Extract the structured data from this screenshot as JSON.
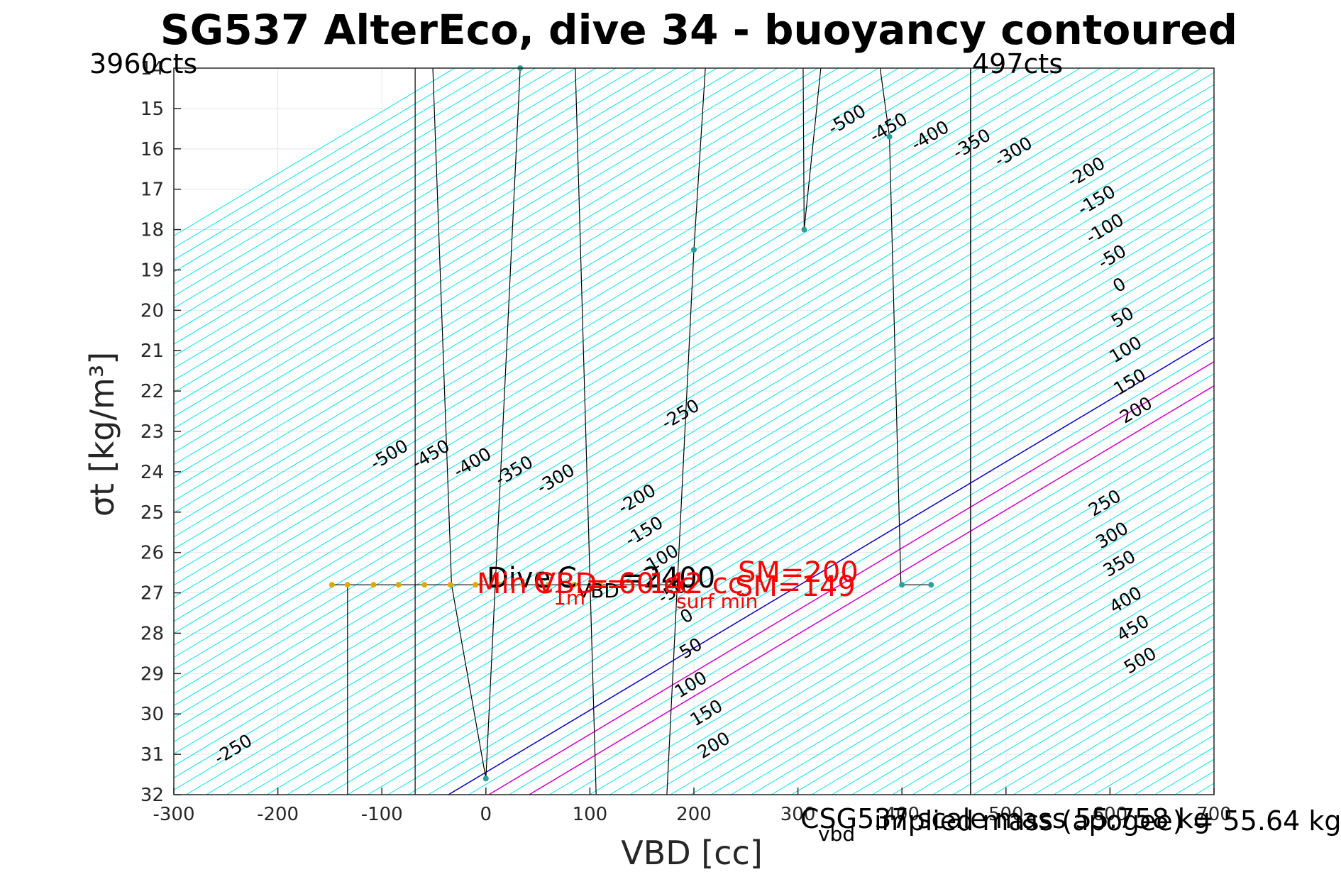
{
  "title": "SG537 AlterEco, dive 34 - buoyancy contoured",
  "corner_labels": {
    "left": "3960cts",
    "right": "497cts"
  },
  "bottom_note": {
    "prefix": "C",
    "sub": "vbd",
    "text": "SG537 scale mass 55.758 kg",
    "overlay": "implied mass (apogee) = 55.64 kg"
  },
  "annotations": {
    "min_vbd_label": "Min VBD = -142 cc",
    "vbd_c_label": "C",
    "vbd_c_sub": "VBD",
    "vbd_c_value": "=2400",
    "c_1m_label": "C",
    "c_1m_sub": "1m",
    "c_1m_value": "= 60 cc",
    "sm_label": "SM",
    "sm_sub": "surf min",
    "sm_value": "=149",
    "dive_label": "Dive",
    "sm_value_top": "=200"
  },
  "colors": {
    "contour": "#00e5ee",
    "zero": "#0000cc",
    "pos": "#cc00cc",
    "trace": "#000000",
    "point": "#2aa198",
    "point_alt": "#e0a800"
  },
  "chart_data": {
    "type": "line",
    "title": "SG537 AlterEco, dive 34 - buoyancy contoured",
    "xlabel": "VBD [cc]",
    "ylabel": "σt [kg/m³]",
    "xlim": [
      -300,
      700
    ],
    "ylim": [
      32,
      14
    ],
    "x_ticks": [
      -300,
      -200,
      -100,
      0,
      100,
      200,
      300,
      400,
      500,
      600,
      700
    ],
    "y_ticks": [
      14,
      15,
      16,
      17,
      18,
      19,
      20,
      21,
      22,
      23,
      24,
      25,
      26,
      27,
      28,
      29,
      30,
      31,
      32
    ],
    "x_tick_labels": [
      "-300",
      "-200",
      "-100",
      "0",
      "100",
      "200",
      "300",
      "400",
      "500",
      "600",
      "700"
    ],
    "y_tick_labels": [
      "14",
      "15",
      "16",
      "17",
      "18",
      "19",
      "20",
      "21",
      "22",
      "23",
      "24",
      "25",
      "26",
      "27",
      "28",
      "29",
      "30",
      "31",
      "32"
    ],
    "grid": true,
    "contours": {
      "slope_cc_per_sigma": 65,
      "zero_anchor": {
        "x": -36,
        "y": 32
      },
      "levels": [
        -500,
        -450,
        -400,
        -350,
        -300,
        -250,
        -200,
        -150,
        -100,
        -50,
        0,
        50,
        100,
        150,
        200,
        250,
        300,
        350,
        400,
        450,
        500
      ],
      "level_spacing_cc": 19.4,
      "labels_lower": [
        {
          "text": "-500",
          "x": -90,
          "y": 23.7
        },
        {
          "text": "-450",
          "x": -50,
          "y": 23.7
        },
        {
          "text": "-400",
          "x": -10,
          "y": 23.9
        },
        {
          "text": "-350",
          "x": 30,
          "y": 24.1
        },
        {
          "text": "-300",
          "x": 70,
          "y": 24.3
        },
        {
          "text": "-250",
          "x": 190,
          "y": 22.7
        },
        {
          "text": "-250",
          "x": -240,
          "y": 31.0
        },
        {
          "text": "-200",
          "x": 148,
          "y": 24.8
        },
        {
          "text": "-150",
          "x": 155,
          "y": 25.6
        },
        {
          "text": "-100",
          "x": 170,
          "y": 26.3
        },
        {
          "text": "-50",
          "x": 182,
          "y": 27.1
        },
        {
          "text": "0",
          "x": 196,
          "y": 27.7
        },
        {
          "text": "50",
          "x": 200,
          "y": 28.5
        },
        {
          "text": "100",
          "x": 200,
          "y": 29.4
        },
        {
          "text": "150",
          "x": 215,
          "y": 30.1
        },
        {
          "text": "200",
          "x": 222,
          "y": 30.9
        }
      ],
      "labels_upper": [
        {
          "text": "-500",
          "x": 350,
          "y": 15.4
        },
        {
          "text": "-450",
          "x": 390,
          "y": 15.6
        },
        {
          "text": "-400",
          "x": 430,
          "y": 15.8
        },
        {
          "text": "-350",
          "x": 470,
          "y": 16.0
        },
        {
          "text": "-300",
          "x": 510,
          "y": 16.2
        },
        {
          "text": "-200",
          "x": 580,
          "y": 16.7
        },
        {
          "text": "-150",
          "x": 590,
          "y": 17.4
        },
        {
          "text": "-100",
          "x": 598,
          "y": 18.1
        },
        {
          "text": "-50",
          "x": 605,
          "y": 18.8
        },
        {
          "text": "0",
          "x": 612,
          "y": 19.5
        },
        {
          "text": "50",
          "x": 615,
          "y": 20.3
        },
        {
          "text": "100",
          "x": 618,
          "y": 21.1
        },
        {
          "text": "150",
          "x": 622,
          "y": 21.9
        },
        {
          "text": "200",
          "x": 628,
          "y": 22.6
        },
        {
          "text": "250",
          "x": 598,
          "y": 24.9
        },
        {
          "text": "300",
          "x": 605,
          "y": 25.7
        },
        {
          "text": "350",
          "x": 612,
          "y": 26.4
        },
        {
          "text": "400",
          "x": 618,
          "y": 27.3
        },
        {
          "text": "450",
          "x": 625,
          "y": 28.0
        },
        {
          "text": "500",
          "x": 632,
          "y": 28.8
        }
      ]
    },
    "vertical_lines": [
      {
        "x": 466,
        "y0": 14,
        "y1": 32,
        "color": "black"
      }
    ],
    "traces": [
      {
        "name": "",
        "points": [
          [
            -68,
            14
          ],
          [
            -68,
            32
          ]
        ]
      },
      {
        "name": "",
        "points": [
          [
            -133,
            26.8
          ],
          [
            -133,
            32
          ]
        ]
      },
      {
        "name": "",
        "points": [
          [
            -51,
            14
          ],
          [
            -33,
            26.8
          ],
          [
            0,
            31.6
          ],
          [
            33,
            14
          ]
        ]
      },
      {
        "name": "",
        "points": [
          [
            86,
            14
          ],
          [
            106,
            32
          ]
        ]
      },
      {
        "name": "",
        "points": [
          [
            211,
            14
          ],
          [
            200,
            18.5
          ],
          [
            174,
            32
          ]
        ]
      },
      {
        "name": "",
        "points": [
          [
            305,
            14
          ],
          [
            306,
            18
          ],
          [
            322,
            14
          ]
        ]
      },
      {
        "name": "",
        "points": [
          [
            379,
            14
          ],
          [
            388,
            15.7
          ],
          [
            399,
            26.8
          ],
          [
            428,
            26.8
          ]
        ]
      },
      {
        "name": "",
        "points": [
          [
            -148,
            26.8
          ],
          [
            200,
            26.8
          ]
        ]
      }
    ],
    "points_teal": [
      [
        33,
        14
      ],
      [
        200,
        18.5
      ],
      [
        306,
        18
      ],
      [
        388,
        15.7
      ],
      [
        0,
        31.6
      ],
      [
        400,
        26.8
      ],
      [
        428,
        26.8
      ]
    ],
    "points_orange": [
      [
        -148,
        26.8
      ],
      [
        -133,
        26.8
      ],
      [
        -108,
        26.8
      ],
      [
        -84,
        26.8
      ],
      [
        -59,
        26.8
      ],
      [
        -34,
        26.8
      ],
      [
        -10,
        26.8
      ],
      [
        13,
        26.8
      ],
      [
        36,
        26.8
      ],
      [
        60,
        26.8
      ],
      [
        85,
        26.8
      ],
      [
        110,
        26.8
      ]
    ]
  }
}
